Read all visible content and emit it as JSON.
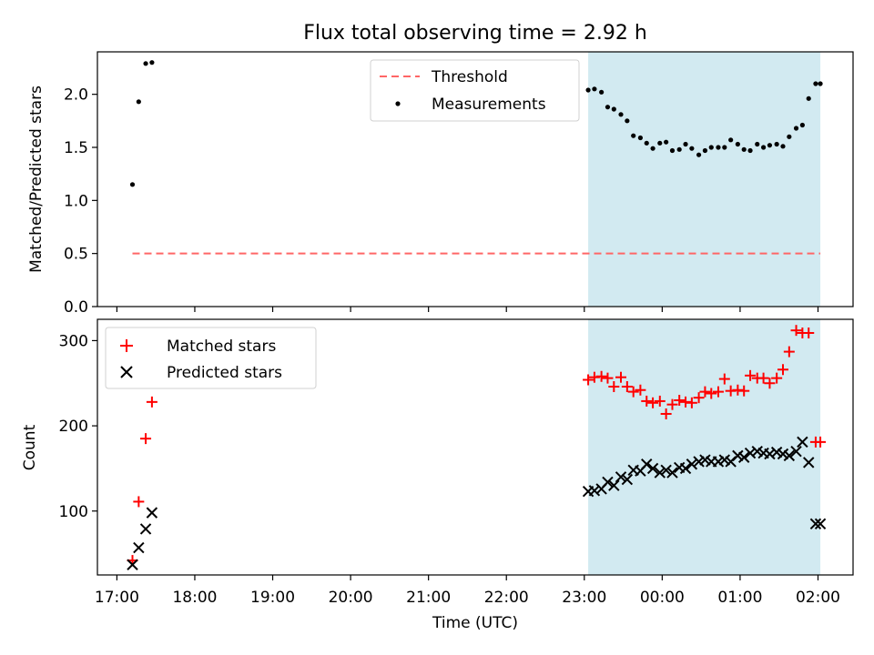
{
  "chart_data": {
    "type": "scatter",
    "title": "Flux total observing time = 2.92 h",
    "xlabel": "Time (UTC)",
    "x_tick_labels": [
      "17:00",
      "18:00",
      "19:00",
      "20:00",
      "21:00",
      "22:00",
      "23:00",
      "00:00",
      "01:00",
      "02:00"
    ],
    "x_ticks_hours": [
      17,
      18,
      19,
      20,
      21,
      22,
      23,
      24,
      25,
      26
    ],
    "xlim_hours": [
      16.75,
      26.45
    ],
    "shaded_span_hours": [
      23.05,
      26.03
    ],
    "shade_color": "#add8e6",
    "top": {
      "ylabel": "Matched/Predicted stars",
      "ylim": [
        0,
        2.4
      ],
      "y_ticks": [
        0.0,
        0.5,
        1.0,
        1.5,
        2.0
      ],
      "y_tick_labels": [
        "0.0",
        "0.5",
        "1.0",
        "1.5",
        "2.0"
      ],
      "legend_position": "upper-center",
      "threshold": {
        "name": "Threshold",
        "value": 0.5,
        "x_range_hours": [
          17.2,
          26.03
        ],
        "color": "#ff6666"
      },
      "measurements": {
        "name": "Measurements",
        "color": "#000000",
        "x": [
          17.2,
          17.28,
          17.37,
          17.45,
          23.05,
          23.13,
          23.22,
          23.3,
          23.38,
          23.47,
          23.55,
          23.63,
          23.72,
          23.8,
          23.88,
          23.97,
          24.05,
          24.13,
          24.22,
          24.3,
          24.38,
          24.47,
          24.55,
          24.63,
          24.72,
          24.8,
          24.88,
          24.97,
          25.05,
          25.13,
          25.22,
          25.3,
          25.38,
          25.47,
          25.55,
          25.63,
          25.72,
          25.8,
          25.88,
          25.97,
          26.03
        ],
        "y": [
          1.15,
          1.93,
          2.29,
          2.3,
          2.04,
          2.05,
          2.02,
          1.88,
          1.86,
          1.81,
          1.75,
          1.61,
          1.59,
          1.54,
          1.49,
          1.54,
          1.55,
          1.47,
          1.48,
          1.53,
          1.49,
          1.43,
          1.47,
          1.5,
          1.5,
          1.5,
          1.57,
          1.53,
          1.48,
          1.47,
          1.53,
          1.5,
          1.52,
          1.53,
          1.51,
          1.6,
          1.68,
          1.71,
          1.96,
          2.1,
          2.1
        ]
      }
    },
    "bottom": {
      "ylabel": "Count",
      "ylim": [
        25,
        325
      ],
      "y_ticks": [
        100,
        200,
        300
      ],
      "y_tick_labels": [
        "100",
        "200",
        "300"
      ],
      "legend_position": "upper-left",
      "matched": {
        "name": "Matched stars",
        "color": "#ff0000",
        "x": [
          17.2,
          17.28,
          17.37,
          17.45,
          23.05,
          23.13,
          23.22,
          23.3,
          23.38,
          23.47,
          23.55,
          23.63,
          23.72,
          23.8,
          23.88,
          23.97,
          24.05,
          24.13,
          24.22,
          24.3,
          24.38,
          24.47,
          24.55,
          24.63,
          24.72,
          24.8,
          24.88,
          24.97,
          25.05,
          25.13,
          25.22,
          25.3,
          25.38,
          25.47,
          25.55,
          25.63,
          25.72,
          25.8,
          25.88,
          25.97,
          26.03
        ],
        "y": [
          42,
          111,
          185,
          228,
          254,
          257,
          258,
          256,
          246,
          257,
          246,
          240,
          242,
          229,
          227,
          229,
          214,
          225,
          230,
          228,
          227,
          233,
          240,
          238,
          240,
          255,
          241,
          242,
          241,
          259,
          256,
          256,
          250,
          256,
          266,
          287,
          312,
          309,
          309,
          181,
          181
        ]
      },
      "predicted": {
        "name": "Predicted stars",
        "color": "#000000",
        "x": [
          17.2,
          17.28,
          17.37,
          17.45,
          23.05,
          23.13,
          23.22,
          23.3,
          23.38,
          23.47,
          23.55,
          23.63,
          23.72,
          23.8,
          23.88,
          23.97,
          24.05,
          24.13,
          24.22,
          24.3,
          24.38,
          24.47,
          24.55,
          24.63,
          24.72,
          24.8,
          24.88,
          24.97,
          25.05,
          25.13,
          25.22,
          25.3,
          25.38,
          25.47,
          25.55,
          25.63,
          25.72,
          25.8,
          25.88,
          25.97,
          26.03
        ],
        "y": [
          37,
          57,
          79,
          98,
          123,
          124,
          126,
          134,
          130,
          140,
          137,
          148,
          147,
          155,
          150,
          145,
          148,
          145,
          151,
          150,
          155,
          158,
          160,
          158,
          158,
          160,
          158,
          165,
          163,
          168,
          170,
          168,
          167,
          169,
          167,
          165,
          170,
          181,
          157,
          85,
          85
        ]
      }
    }
  }
}
